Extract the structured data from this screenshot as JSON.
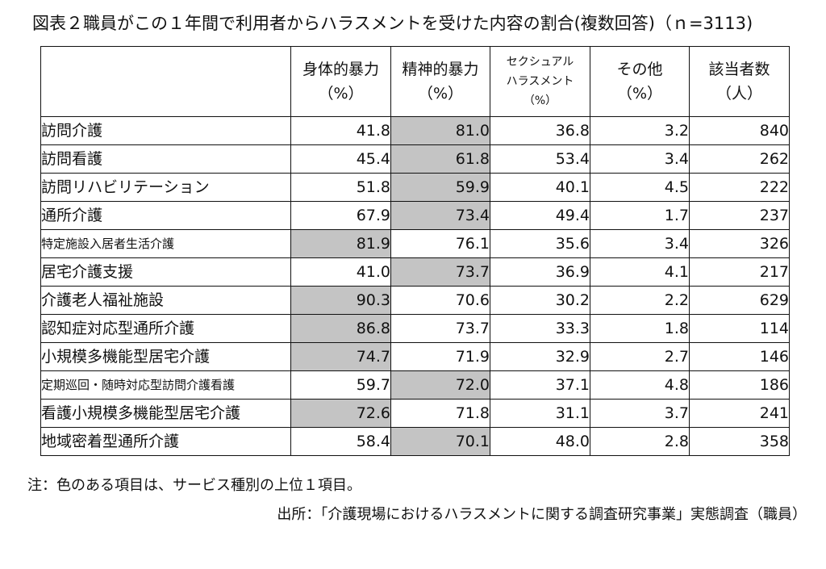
{
  "title": "図表２職員がこの１年間で利用者からハラスメントを受けた内容の割合(複数回答)（ｎ=3113)",
  "columns": [
    {
      "label": "身体的暴力",
      "unit": "（%）"
    },
    {
      "label": "精神的暴力",
      "unit": "（%）"
    },
    {
      "label": "セクシュアル\nハラスメント",
      "unit": "（%）"
    },
    {
      "label": "その他",
      "unit": "（%）"
    },
    {
      "label": "該当者数",
      "unit": "（人）"
    }
  ],
  "rows": [
    {
      "label": "訪問介護",
      "values": [
        "41.8",
        "81.0",
        "36.8",
        "3.2",
        "840"
      ],
      "highlight": 1
    },
    {
      "label": "訪問看護",
      "values": [
        "45.4",
        "61.8",
        "53.4",
        "3.4",
        "262"
      ],
      "highlight": 1
    },
    {
      "label": "訪問リハビリテーション",
      "values": [
        "51.8",
        "59.9",
        "40.1",
        "4.5",
        "222"
      ],
      "highlight": 1
    },
    {
      "label": "通所介護",
      "values": [
        "67.9",
        "73.4",
        "49.4",
        "1.7",
        "237"
      ],
      "highlight": 1
    },
    {
      "label": "特定施設入居者生活介護",
      "values": [
        "81.9",
        "76.1",
        "35.6",
        "3.4",
        "326"
      ],
      "highlight": 0,
      "small": true
    },
    {
      "label": "居宅介護支援",
      "values": [
        "41.0",
        "73.7",
        "36.9",
        "4.1",
        "217"
      ],
      "highlight": 1
    },
    {
      "label": "介護老人福祉施設",
      "values": [
        "90.3",
        "70.6",
        "30.2",
        "2.2",
        "629"
      ],
      "highlight": 0
    },
    {
      "label": "認知症対応型通所介護",
      "values": [
        "86.8",
        "73.7",
        "33.3",
        "1.8",
        "114"
      ],
      "highlight": 0
    },
    {
      "label": "小規模多機能型居宅介護",
      "values": [
        "74.7",
        "71.9",
        "32.9",
        "2.7",
        "146"
      ],
      "highlight": 0
    },
    {
      "label": "定期巡回・随時対応型訪問介護看護",
      "values": [
        "59.7",
        "72.0",
        "37.1",
        "4.8",
        "186"
      ],
      "highlight": 1,
      "small": true
    },
    {
      "label": "看護小規模多機能型居宅介護",
      "values": [
        "72.6",
        "71.8",
        "31.1",
        "3.7",
        "241"
      ],
      "highlight": 0
    },
    {
      "label": "地域密着型通所介護",
      "values": [
        "58.4",
        "70.1",
        "48.0",
        "2.8",
        "358"
      ],
      "highlight": 1
    }
  ],
  "colors": {
    "highlight": "#c4c4c4",
    "border": "#111111"
  },
  "note": "注：色のある項目は、サービス種別の上位１項目。",
  "source": "出所：「介護現場におけるハラスメントに関する調査研究事業」実態調査（職員）"
}
